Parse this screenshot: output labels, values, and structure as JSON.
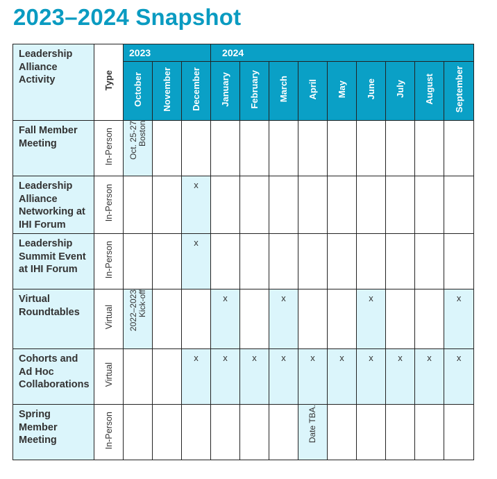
{
  "page_title": "2023–2024 Snapshot",
  "header": {
    "activity": "Leadership Alliance Activity",
    "type": "Type",
    "years": [
      "2023",
      "2024"
    ],
    "months": [
      "October",
      "November",
      "December",
      "January",
      "February",
      "March",
      "April",
      "May",
      "June",
      "July",
      "August",
      "September"
    ]
  },
  "rows": [
    {
      "activity": "Fall Member Meeting",
      "type": "In-Person",
      "note": {
        "line1": "Oct. 25-27",
        "line2": "Boston"
      }
    },
    {
      "activity": "Leadership Alliance Networking at IHI Forum",
      "type": "In-Person",
      "mark": "x"
    },
    {
      "activity": "Leadership Summit Event at IHI Forum",
      "type": "In-Person",
      "mark": "x"
    },
    {
      "activity": "Virtual Roundtables",
      "type": "Virtual",
      "mark": "x",
      "note": {
        "line1": "2022–2023",
        "line2": "Kick-off"
      }
    },
    {
      "activity": "Cohorts and Ad Hoc Collaborations",
      "type": "Virtual",
      "mark": "x"
    },
    {
      "activity": "Spring Member Meeting",
      "type": "In-Person",
      "note": {
        "line1": "Date TBA."
      }
    }
  ],
  "colors": {
    "accent": "#0a9bc1",
    "header_bg": "#0aa0c6",
    "highlight": "#dbf5fb"
  }
}
